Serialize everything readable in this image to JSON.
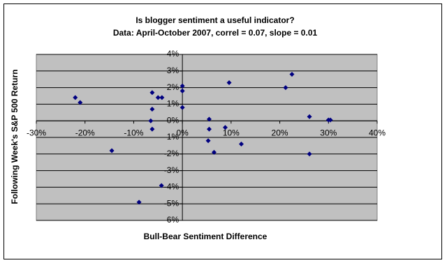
{
  "chart_data": {
    "type": "scatter",
    "title": "Is blogger sentiment a useful indicator?",
    "subtitle": "Data:  April-October 2007, correl = 0.07, slope = 0.01",
    "x_label": "Bull-Bear Sentiment Difference",
    "y_label": "Following Week's S&P 500 Return",
    "color": "#000080",
    "background": "#c0c0c0",
    "grid": true,
    "x": [
      -22,
      -21,
      -14.5,
      -8.9,
      -6.2,
      -6.2,
      -6.5,
      -6.2,
      -5,
      -4.2,
      -4.3,
      0,
      0,
      0,
      5.5,
      5.5,
      5.3,
      6.5,
      8.8,
      9.6,
      12.1,
      21.2,
      22.5,
      26.1,
      26.1,
      30,
      30.4
    ],
    "values": [
      1.4,
      1.1,
      -1.8,
      -4.9,
      1.7,
      0.7,
      0,
      -0.5,
      1.4,
      1.4,
      -3.9,
      2.1,
      1.8,
      0.8,
      0.1,
      -0.5,
      -1.2,
      -1.9,
      -0.4,
      2.3,
      -1.4,
      2.0,
      2.8,
      0.25,
      -2.0,
      0.05,
      0.05
    ],
    "xlim": [
      -30,
      40
    ],
    "ylim": [
      -6,
      4
    ],
    "xticks": [
      {
        "value": -30,
        "label": "-30%"
      },
      {
        "value": -20,
        "label": "-20%"
      },
      {
        "value": -10,
        "label": "-10%"
      },
      {
        "value": 0,
        "label": "0%"
      },
      {
        "value": 10,
        "label": "10%"
      },
      {
        "value": 20,
        "label": "20%"
      },
      {
        "value": 30,
        "label": "30%"
      },
      {
        "value": 40,
        "label": "40%"
      }
    ],
    "yticks": [
      {
        "value": 4,
        "label": "4%"
      },
      {
        "value": 3,
        "label": "3%"
      },
      {
        "value": 2,
        "label": "2%"
      },
      {
        "value": 1,
        "label": "1%"
      },
      {
        "value": 0,
        "label": "0%"
      },
      {
        "value": -1,
        "label": "-1%"
      },
      {
        "value": -2,
        "label": "-2%"
      },
      {
        "value": -3,
        "label": "-3%"
      },
      {
        "value": -4,
        "label": "-4%"
      },
      {
        "value": -5,
        "label": "-5%"
      },
      {
        "value": -6,
        "label": "-6%"
      }
    ]
  }
}
